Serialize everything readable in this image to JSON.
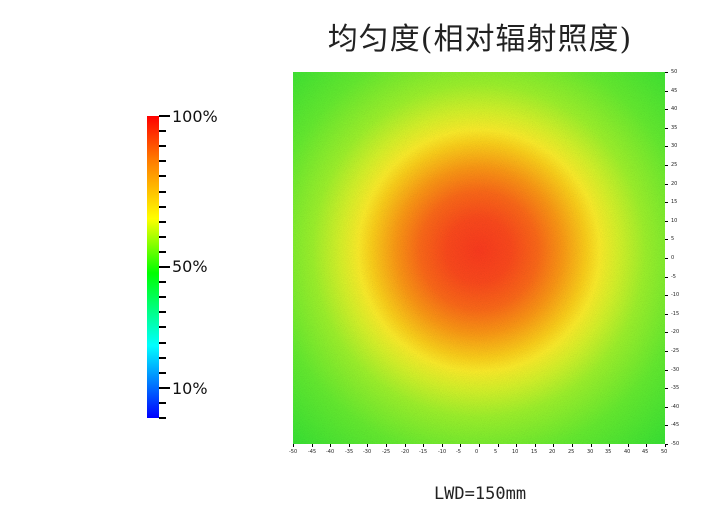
{
  "chart_data": {
    "type": "heatmap",
    "title": "均匀度(相对辐射照度)",
    "footer": "LWD=150mm",
    "x_ticks": [
      "-50",
      "-45",
      "-40",
      "-35",
      "-30",
      "-25",
      "-20",
      "-15",
      "-10",
      "-5",
      "0",
      "5",
      "10",
      "15",
      "20",
      "25",
      "30",
      "35",
      "40",
      "45",
      "50"
    ],
    "y_ticks": [
      "50",
      "45",
      "40",
      "35",
      "30",
      "25",
      "20",
      "15",
      "10",
      "5",
      "0",
      "-5",
      "-10",
      "-15",
      "-20",
      "-25",
      "-30",
      "-35",
      "-40",
      "-45",
      "-50"
    ],
    "xlim": [
      -50,
      50
    ],
    "ylim": [
      -50,
      50
    ],
    "colorbar": {
      "labels": [
        "100%",
        "50%",
        "10%"
      ],
      "colors": [
        "#ff0000",
        "#ff7700",
        "#ffff00",
        "#00ff00",
        "#00ffff",
        "#0000ff"
      ]
    },
    "peak_location": [
      0,
      0
    ],
    "center_value_pct": 100,
    "edge_value_pct": 55
  }
}
